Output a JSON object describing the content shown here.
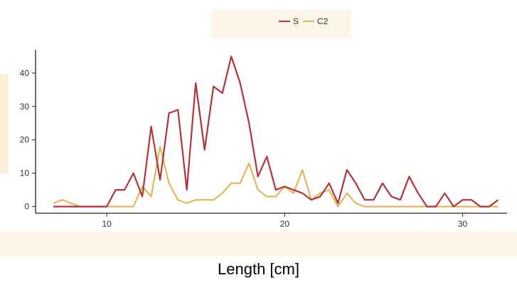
{
  "chart_data": {
    "type": "line",
    "xlabel": "Length [cm]",
    "ylabel": "",
    "xlim": [
      6,
      32.5
    ],
    "ylim": [
      -2,
      47
    ],
    "xticks": [
      10,
      20,
      30
    ],
    "yticks": [
      0,
      10,
      20,
      30,
      40
    ],
    "legend_position": "top",
    "series": [
      {
        "name": "S",
        "color": "#b5323a",
        "x": [
          7,
          7.5,
          8,
          8.5,
          9,
          9.5,
          10,
          10.5,
          11,
          11.5,
          12,
          12.5,
          13,
          13.5,
          14,
          14.5,
          15,
          15.5,
          16,
          16.5,
          17,
          17.5,
          18,
          18.5,
          19,
          19.5,
          20,
          20.5,
          21,
          21.5,
          22,
          22.5,
          23,
          23.5,
          24,
          24.5,
          25,
          25.5,
          26,
          26.5,
          27,
          27.5,
          28,
          28.5,
          29,
          29.5,
          30,
          30.5,
          31,
          31.5,
          32
        ],
        "values": [
          0,
          0,
          0,
          0,
          0,
          0,
          0,
          5,
          5,
          10,
          3,
          24,
          8,
          28,
          29,
          5,
          37,
          17,
          36,
          34,
          45,
          37,
          25,
          9,
          15,
          5,
          6,
          5,
          4,
          2,
          3,
          7,
          1,
          11,
          7,
          2,
          2,
          7,
          3,
          2,
          9,
          4,
          0,
          0,
          4,
          0,
          2,
          2,
          0,
          0,
          2
        ]
      },
      {
        "name": "C2",
        "color": "#e0b85a",
        "x": [
          7,
          7.5,
          8,
          8.5,
          9,
          9.5,
          10,
          10.5,
          11,
          11.5,
          12,
          12.5,
          13,
          13.5,
          14,
          14.5,
          15,
          15.5,
          16,
          16.5,
          17,
          17.5,
          18,
          18.5,
          19,
          19.5,
          20,
          20.5,
          21,
          21.5,
          22,
          22.5,
          23,
          23.5,
          24,
          24.5,
          25,
          25.5,
          26,
          26.5,
          27,
          27.5,
          28,
          28.5,
          29,
          29.5,
          30,
          30.5,
          31,
          31.5,
          32
        ],
        "values": [
          1,
          2,
          1,
          0,
          0,
          0,
          0,
          0,
          0,
          0,
          6,
          3,
          18,
          7,
          2,
          1,
          2,
          2,
          2,
          4,
          7,
          7,
          13,
          5,
          3,
          3,
          6,
          4,
          11,
          2,
          4,
          5,
          0,
          4,
          1,
          0,
          0,
          0,
          0,
          0,
          0,
          0,
          0,
          0,
          0,
          0,
          0,
          0,
          0,
          0,
          0
        ]
      }
    ]
  }
}
